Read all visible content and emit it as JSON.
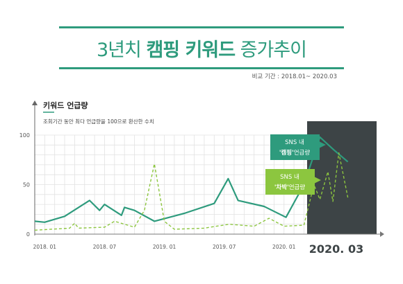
{
  "header": {
    "title_prefix": "3년치",
    "title_bold": "캠핑 키워드",
    "title_suffix": "증가추이",
    "period": "비교 기간 : 2018.01~ 2020.03"
  },
  "colors": {
    "accent": "#2e9b7d",
    "secondary": "#8cc63f",
    "highlight_band": "#3d4446",
    "grid": "#e2e2e2"
  },
  "chart_data": {
    "type": "line",
    "title": "키워드 언급량",
    "subtitle": "조회기간 동안 최다 언급량을 100으로 환산한 수치",
    "x_ticks": [
      "2018. 01",
      "2018. 07",
      "2019. 01",
      "2019. 07",
      "2020. 01"
    ],
    "highlight_label": "2020. 03",
    "ylim": [
      0,
      100
    ],
    "y_ticks": [
      0,
      50,
      100
    ],
    "grid": true,
    "series": [
      {
        "name": "SNS 내 '캠핑'언급량",
        "callout_line1": "SNS 내",
        "callout_line2_quoted": "'캠핑'",
        "callout_line2_rest": "언급량",
        "style": "solid",
        "points": [
          [
            0.0,
            13
          ],
          [
            1.0,
            12
          ],
          [
            3.0,
            18
          ],
          [
            5.5,
            34
          ],
          [
            6.5,
            24
          ],
          [
            7.0,
            30
          ],
          [
            8.7,
            19
          ],
          [
            9.0,
            27
          ],
          [
            10.0,
            24
          ],
          [
            12.0,
            13
          ],
          [
            15.0,
            21
          ],
          [
            18.0,
            31
          ],
          [
            19.4,
            56
          ],
          [
            20.4,
            34
          ],
          [
            23.0,
            28
          ],
          [
            25.2,
            17
          ],
          [
            27.0,
            50
          ],
          [
            28.6,
            98
          ],
          [
            30.0,
            85
          ],
          [
            31.4,
            73
          ]
        ]
      },
      {
        "name": "SNS 내 '차박'언급량",
        "callout_line1": "SNS 내",
        "callout_line2_quoted": "'차박'",
        "callout_line2_rest": "언급량",
        "style": "dashed",
        "points": [
          [
            0.0,
            4
          ],
          [
            3.5,
            6
          ],
          [
            4.0,
            11
          ],
          [
            4.4,
            6
          ],
          [
            7.0,
            7
          ],
          [
            8.0,
            13
          ],
          [
            10.0,
            7
          ],
          [
            11.0,
            24
          ],
          [
            12.0,
            71
          ],
          [
            13.0,
            13
          ],
          [
            14.0,
            5
          ],
          [
            17.0,
            6
          ],
          [
            19.5,
            10
          ],
          [
            22.0,
            8
          ],
          [
            23.5,
            16
          ],
          [
            25.0,
            8
          ],
          [
            27.0,
            9
          ],
          [
            28.0,
            50
          ],
          [
            28.6,
            35
          ],
          [
            29.4,
            63
          ],
          [
            29.9,
            33
          ],
          [
            30.5,
            82
          ],
          [
            31.4,
            37
          ]
        ]
      }
    ]
  }
}
